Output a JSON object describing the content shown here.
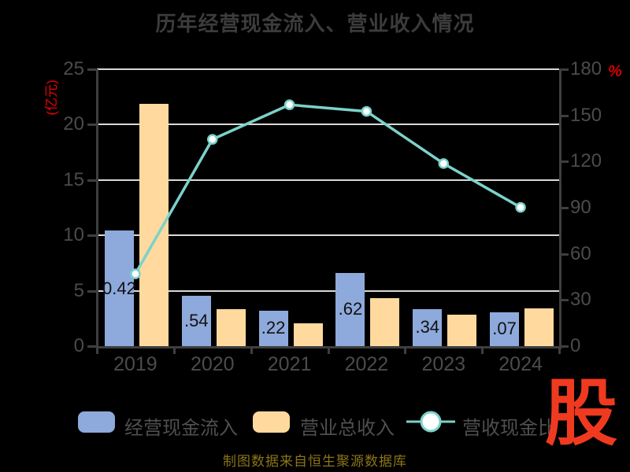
{
  "title": "历年经营现金流入、营业收入情况",
  "source_note": "制图数据来自恒生聚源数据库",
  "watermark": "股",
  "colors": {
    "background": "#000000",
    "title": "#3c3c3c",
    "axis_line": "#3e3e3e",
    "tick_label": "#4b4b4b",
    "gridline": "#d9d9d9",
    "bar_blue": "#8ea9db",
    "bar_orange": "#ffd99e",
    "line_teal": "#7bd2cb",
    "marker_fill": "#ffffff",
    "axis_name_red": "#ee0000",
    "watermark_red": "#ef3a20",
    "source_gold": "#8c7418",
    "bar_label": "#111111"
  },
  "chart_data": {
    "type": "bar+line combo",
    "categories": [
      "2019",
      "2020",
      "2021",
      "2022",
      "2023",
      "2024"
    ],
    "series": [
      {
        "name": "经营现金流入",
        "type": "bar",
        "axis": "left",
        "values": [
          10.42,
          4.54,
          3.22,
          6.62,
          3.34,
          3.07
        ],
        "visible_bar_labels": [
          "0.42",
          ".54",
          ".22",
          ".62",
          ".34",
          ".07"
        ]
      },
      {
        "name": "营业总收入",
        "type": "bar",
        "axis": "left",
        "values": [
          21.9,
          3.37,
          2.06,
          4.34,
          2.81,
          3.41
        ]
      },
      {
        "name": "营收现金比",
        "type": "line",
        "axis": "right",
        "values": [
          47,
          134.4,
          156.9,
          152.6,
          118.7,
          90.2
        ]
      }
    ],
    "left_axis": {
      "name": "(亿元)",
      "min": 0,
      "max": 25,
      "ticks": [
        0,
        5,
        10,
        15,
        20,
        25
      ]
    },
    "right_axis": {
      "name": "%",
      "min": 0,
      "max": 180,
      "ticks": [
        0,
        30,
        60,
        90,
        120,
        150,
        180
      ]
    },
    "grid": true,
    "legend_position": "bottom"
  }
}
